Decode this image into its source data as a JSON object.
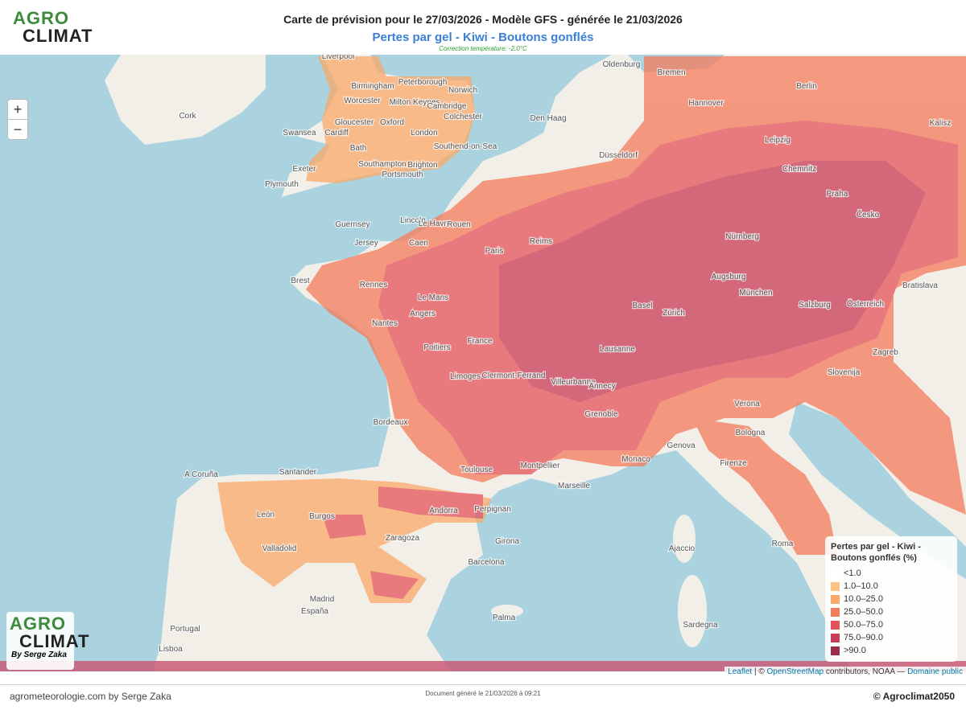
{
  "header": {
    "logo": [
      "AGRO",
      "CLIMAT"
    ],
    "title": "Carte de prévision pour le 27/03/2026 - Modèle GFS - générée le 21/03/2026",
    "subtitle": "Pertes par gel - Kiwi - Boutons gonflés",
    "note": "Correction température: -2.0°C"
  },
  "zoom": {
    "in": "+",
    "out": "−"
  },
  "map_labels": [
    "Liverpool",
    "Birmingham",
    "Peterborough",
    "Norwich",
    "Worcester",
    "Milton Keynes",
    "Cambridge",
    "Gloucester",
    "Oxford",
    "Colchester",
    "Cardiff",
    "Swansea",
    "London",
    "Bath",
    "Southend-on-Sea",
    "Exeter",
    "Southampton",
    "Portsmouth",
    "Brighton",
    "Plymouth",
    "Cork",
    "Lincoln",
    "Le Havre",
    "Rouen",
    "Guernsey",
    "Jersey",
    "Caen",
    "Paris",
    "Reims",
    "Brest",
    "Rennes",
    "Le Mans",
    "Angers",
    "Nantes",
    "Poitiers",
    "France",
    "Limoges",
    "Clermont-Ferrand",
    "Villeurbanne",
    "Annecy",
    "Lausanne",
    "Grenoble",
    "Bordeaux",
    "Toulouse",
    "Montpellier",
    "Marseille",
    "Monaco",
    "Genova",
    "Basel",
    "Zürich",
    "München",
    "Augsburg",
    "Salzburg",
    "Nürnberg",
    "Praha",
    "Chemnitz",
    "Leipzig",
    "Hannover",
    "Bremen",
    "Berlin",
    "Düsseldorf",
    "Den Haag",
    "Bratislava",
    "Zagreb",
    "Slovenija",
    "Verona",
    "Bologna",
    "Firenze",
    "Roma",
    "Ajaccio",
    "Sardegna",
    "Barcelona",
    "Zaragoza",
    "Madrid",
    "España",
    "Palma",
    "Portugal",
    "Lisboa",
    "Santander",
    "A Coruña",
    "Valladolid",
    "Burgos",
    "León",
    "Andorra",
    "Perpignan",
    "Girona",
    "Österreich",
    "Česko",
    "Oldenburg",
    "Kalisz"
  ],
  "legend": {
    "title": "Pertes par gel - Kiwi - Boutons gonflés (%)",
    "items": [
      {
        "label": "<1.0",
        "color": "#ffffff"
      },
      {
        "label": "1.0–10.0",
        "color": "#fdc283"
      },
      {
        "label": "10.0–25.0",
        "color": "#fba96a"
      },
      {
        "label": "25.0–50.0",
        "color": "#f47c5b"
      },
      {
        "label": "50.0–75.0",
        "color": "#e5525a"
      },
      {
        "label": "75.0–90.0",
        "color": "#c93c55"
      },
      {
        "label": ">90.0",
        "color": "#9c2c48"
      }
    ]
  },
  "attribution": {
    "leaflet": "Leaflet",
    "sep": " | © ",
    "osm": "OpenStreetMap",
    "text": " contributors, NOAA — ",
    "public": "Domaine public"
  },
  "corner_logo": {
    "logo": [
      "AGRO",
      "CLIMAT"
    ],
    "byline": "By Serge Zaka"
  },
  "footer": {
    "left": "agrometeorologie.com by Serge Zaka",
    "center": "Document généré le 21/03/2026 à 09:21",
    "right": "© Agroclimat2050"
  }
}
